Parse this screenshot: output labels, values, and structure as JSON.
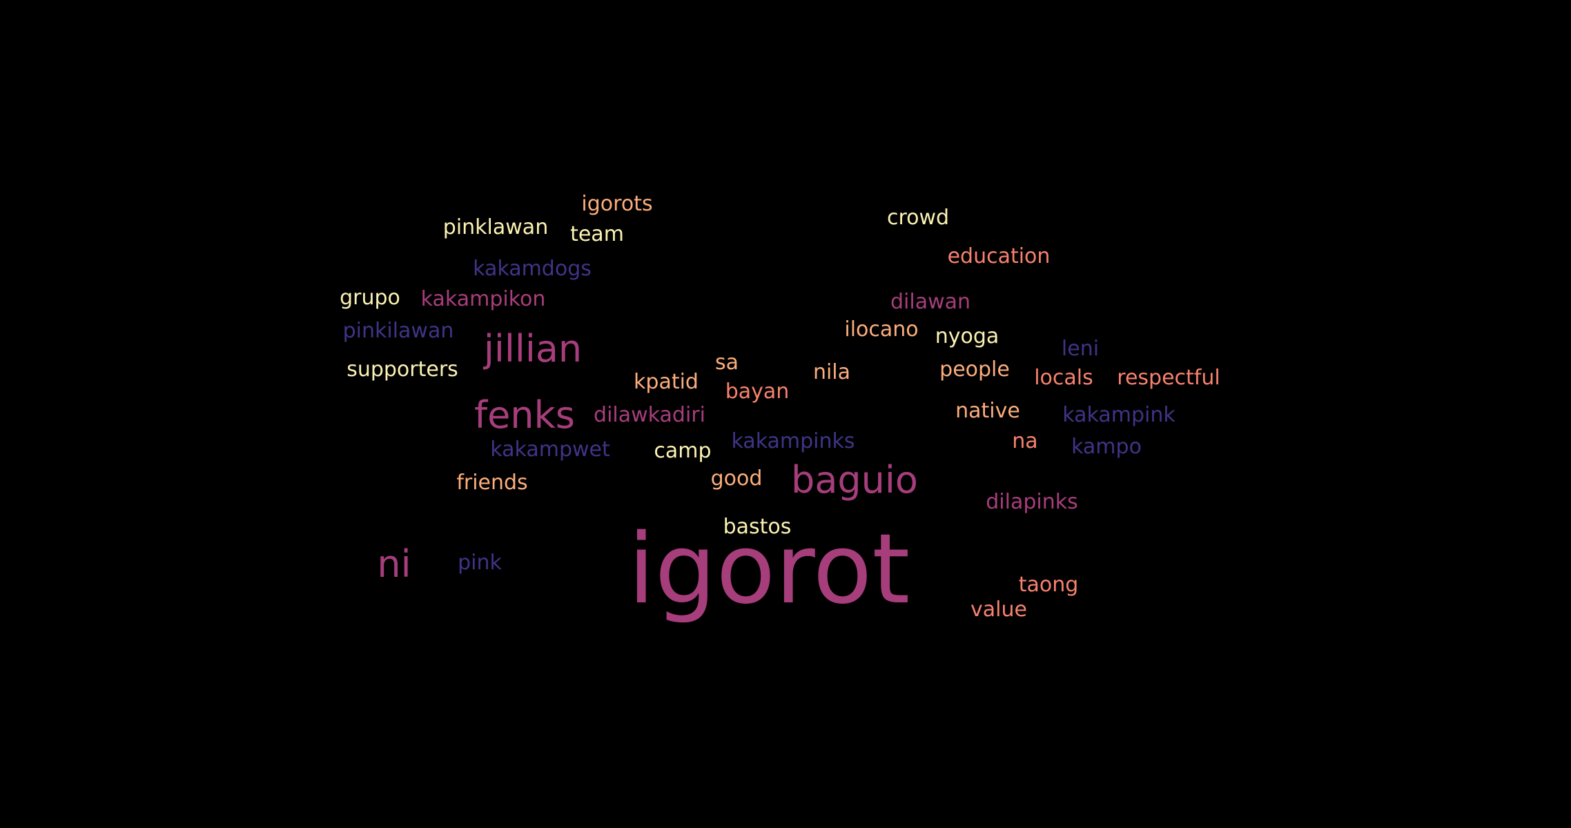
{
  "palette": {
    "background": "#000000",
    "pale_yellow": "#fcf2b3",
    "peach": "#fcae7c",
    "salmon": "#f8826f",
    "magenta": "#a73e7c",
    "indigo": "#3f3487"
  },
  "words": [
    {
      "text": "igorot",
      "color": "#a73e7c"
    },
    {
      "text": "baguio",
      "color": "#a73e7c"
    },
    {
      "text": "fenks",
      "color": "#a73e7c"
    },
    {
      "text": "jillian",
      "color": "#a73e7c"
    },
    {
      "text": "ni",
      "color": "#a73e7c"
    },
    {
      "text": "igorots",
      "color": "#fcae7c"
    },
    {
      "text": "pinklawan",
      "color": "#fcf2b3"
    },
    {
      "text": "team",
      "color": "#fcf2b3"
    },
    {
      "text": "crowd",
      "color": "#fcf2b3"
    },
    {
      "text": "education",
      "color": "#f8826f"
    },
    {
      "text": "kakamdogs",
      "color": "#3f3487"
    },
    {
      "text": "grupo",
      "color": "#fcf2b3"
    },
    {
      "text": "kakampikon",
      "color": "#a73e7c"
    },
    {
      "text": "dilawan",
      "color": "#a73e7c"
    },
    {
      "text": "pinkilawan",
      "color": "#3f3487"
    },
    {
      "text": "ilocano",
      "color": "#fcae7c"
    },
    {
      "text": "nyoga",
      "color": "#fcf2b3"
    },
    {
      "text": "leni",
      "color": "#3f3487"
    },
    {
      "text": "supporters",
      "color": "#fcf2b3"
    },
    {
      "text": "sa",
      "color": "#fcae7c"
    },
    {
      "text": "nila",
      "color": "#fcae7c"
    },
    {
      "text": "people",
      "color": "#fcae7c"
    },
    {
      "text": "locals",
      "color": "#f8826f"
    },
    {
      "text": "respectful",
      "color": "#f8826f"
    },
    {
      "text": "kpatid",
      "color": "#fcae7c"
    },
    {
      "text": "bayan",
      "color": "#f8826f"
    },
    {
      "text": "dilawkadiri",
      "color": "#a73e7c"
    },
    {
      "text": "native",
      "color": "#fcae7c"
    },
    {
      "text": "kakampink",
      "color": "#3f3487"
    },
    {
      "text": "kakampwet",
      "color": "#3f3487"
    },
    {
      "text": "camp",
      "color": "#fcf2b3"
    },
    {
      "text": "kakampinks",
      "color": "#3f3487"
    },
    {
      "text": "na",
      "color": "#f8826f"
    },
    {
      "text": "kampo",
      "color": "#3f3487"
    },
    {
      "text": "friends",
      "color": "#fcae7c"
    },
    {
      "text": "good",
      "color": "#fcae7c"
    },
    {
      "text": "dilapinks",
      "color": "#a73e7c"
    },
    {
      "text": "bastos",
      "color": "#fcf2b3"
    },
    {
      "text": "pink",
      "color": "#3f3487"
    },
    {
      "text": "taong",
      "color": "#f8826f"
    },
    {
      "text": "value",
      "color": "#f8826f"
    }
  ]
}
